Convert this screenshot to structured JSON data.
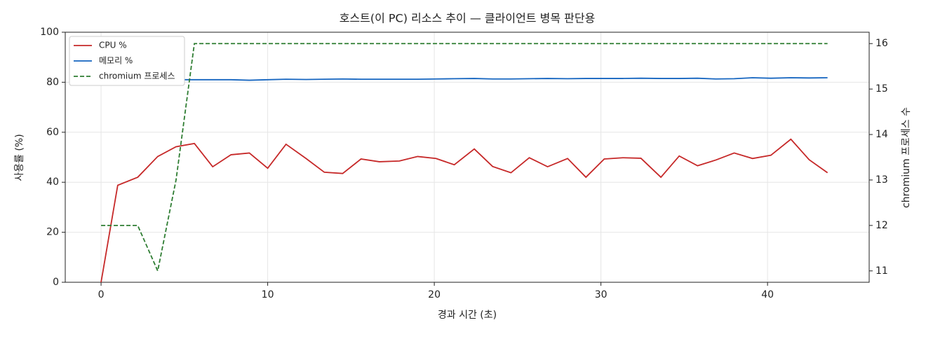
{
  "chart_data": {
    "type": "line",
    "title": "호스트(이 PC) 리소스 추이 — 클라이언트 병목 판단용",
    "xlabel": "경과 시간 (초)",
    "ylabel": "사용률 (%)",
    "y2label": "chromium 프로세스 수",
    "x": [
      0,
      1.0,
      2.2,
      3.4,
      4.5,
      5.6,
      6.7,
      7.8,
      8.9,
      10.0,
      11.1,
      12.3,
      13.4,
      14.5,
      15.6,
      16.7,
      17.9,
      19.0,
      20.1,
      21.2,
      22.4,
      23.5,
      24.6,
      25.7,
      26.8,
      28.0,
      29.1,
      30.2,
      31.3,
      32.4,
      33.6,
      34.7,
      35.8,
      36.9,
      38.0,
      39.1,
      40.2,
      41.4,
      42.5,
      43.6
    ],
    "series": [
      {
        "name": "CPU %",
        "color": "#c62828",
        "dash": false,
        "values": [
          0,
          38.8,
          42,
          50.3,
          54.2,
          55.5,
          46.2,
          51,
          51.7,
          45.6,
          55.2,
          49.5,
          44,
          43.5,
          49.3,
          48.2,
          48.5,
          50.3,
          49.5,
          47,
          53.3,
          46.3,
          43.8,
          49.8,
          46.2,
          49.5,
          42,
          49.3,
          49.8,
          49.6,
          42,
          50.5,
          46.6,
          48.9,
          51.7,
          49.5,
          50.8,
          57.2,
          49,
          43.8
        ]
      },
      {
        "name": "메모리 %",
        "color": "#1565c0",
        "dash": false,
        "values": [
          null,
          null,
          null,
          null,
          81,
          81,
          81,
          81,
          80.8,
          81,
          81.2,
          81.1,
          81.2,
          81.3,
          81.2,
          81.2,
          81.2,
          81.2,
          81.3,
          81.4,
          81.5,
          81.3,
          81.3,
          81.4,
          81.5,
          81.4,
          81.5,
          81.5,
          81.5,
          81.6,
          81.5,
          81.5,
          81.6,
          81.3,
          81.4,
          81.8,
          81.6,
          81.8,
          81.7,
          81.8
        ]
      },
      {
        "name": "chromium 프로세스",
        "color": "#2e7d32",
        "dash": true,
        "axis": "y2",
        "values": [
          12,
          12,
          12,
          11,
          13,
          16,
          16,
          16,
          16,
          16,
          16,
          16,
          16,
          16,
          16,
          16,
          16,
          16,
          16,
          16,
          16,
          16,
          16,
          16,
          16,
          16,
          16,
          16,
          16,
          16,
          16,
          16,
          16,
          16,
          16,
          16,
          16,
          16,
          16,
          16
        ]
      }
    ],
    "xlim": [
      -2.15,
      46.1
    ],
    "xticks": [
      0,
      10,
      20,
      30,
      40
    ],
    "ylim": [
      0,
      100
    ],
    "yticks": [
      0,
      20,
      40,
      60,
      80,
      100
    ],
    "y2lim": [
      10.75,
      16.25
    ],
    "y2ticks": [
      11,
      12,
      13,
      14,
      15,
      16
    ],
    "grid": true,
    "legend": "upper left"
  }
}
